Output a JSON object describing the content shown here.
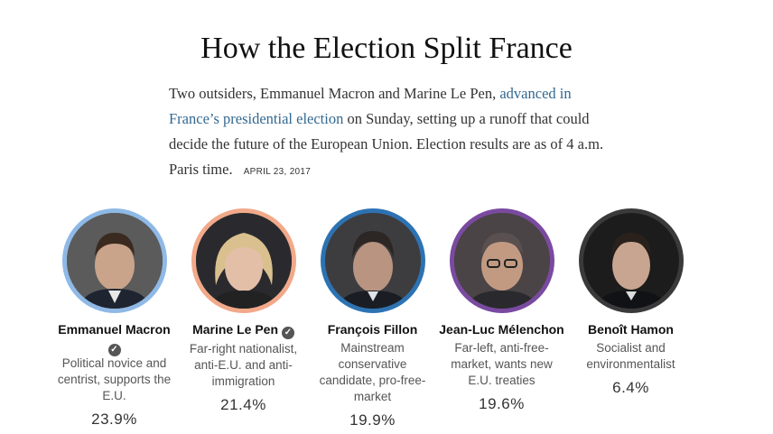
{
  "headline": "How the Election Split France",
  "intro": {
    "text_before": "Two outsiders, Emmanuel Macron and Marine Le Pen,",
    "link_text": "advanced in France’s presidential election",
    "text_after": "on Sunday, setting up a runoff that could decide the future of the European Union. Election results are as of 4 a.m. Paris time.",
    "dateline": "APRIL 23, 2017"
  },
  "candidates": [
    {
      "name": "Emmanuel Macron",
      "advanced": true,
      "description": "Political novice and centrist, supports the E.U.",
      "percent": "23.9%",
      "ring_color": "#8fb9e6",
      "portrait_icon": "portrait-photo-icon"
    },
    {
      "name": "Marine Le Pen",
      "advanced": true,
      "description": "Far-right nationalist, anti-E.U. and anti-immigration",
      "percent": "21.4%",
      "ring_color": "#f2a98a",
      "portrait_icon": "portrait-photo-icon"
    },
    {
      "name": "François Fillon",
      "advanced": false,
      "description": "Mainstream conservative candidate, pro-free-market",
      "percent": "19.9%",
      "ring_color": "#2d73b3",
      "portrait_icon": "portrait-photo-icon"
    },
    {
      "name": "Jean-Luc Mélenchon",
      "advanced": false,
      "description": "Far-left, anti-free-market, wants new E.U. treaties",
      "percent": "19.6%",
      "ring_color": "#7a4aa0",
      "portrait_icon": "portrait-photo-icon"
    },
    {
      "name": "Benoît Hamon",
      "advanced": false,
      "description": "Socialist and environmentalist",
      "percent": "6.4%",
      "ring_color": "#3a3a3a",
      "portrait_icon": "portrait-photo-icon"
    }
  ],
  "check_glyph": "✓"
}
